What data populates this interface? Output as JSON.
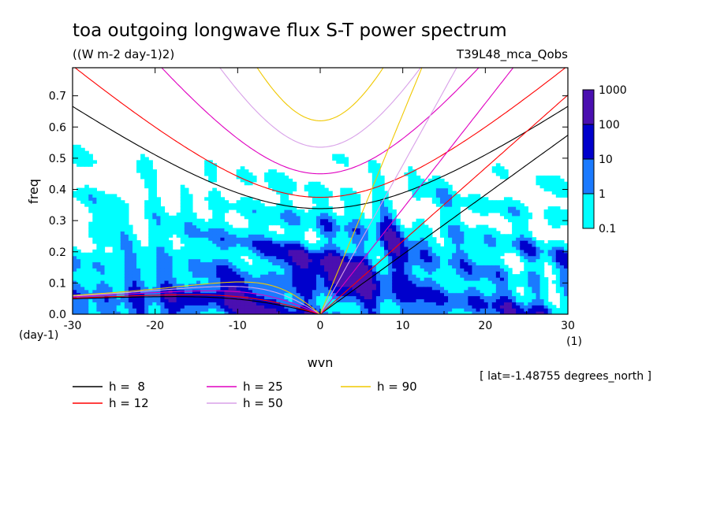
{
  "chart_data": {
    "type": "heatmap",
    "title": "toa outgoing longwave flux S-T power spectrum",
    "subtitle": "((W m-2 day-1)2)",
    "experiment": "T39L48_mca_Qobs",
    "xlabel": "wvn",
    "xunit": "(1)",
    "ylabel": "freq",
    "yunit": "(day-1)",
    "xlim": [
      -30,
      30
    ],
    "ylim": [
      0,
      0.79
    ],
    "x_ticks": [
      "-30",
      "-20",
      "-10",
      "0",
      "10",
      "20",
      "30"
    ],
    "x_tick_values": [
      -30,
      -20,
      -10,
      0,
      10,
      20,
      30
    ],
    "y_ticks": [
      "0.0",
      "0.1",
      "0.2",
      "0.3",
      "0.4",
      "0.5",
      "0.6",
      "0.7"
    ],
    "y_tick_values": [
      0,
      0.1,
      0.2,
      0.3,
      0.4,
      0.5,
      0.6,
      0.7
    ],
    "colorbar": {
      "labels": [
        "1000",
        "100",
        "10",
        "1",
        "0.1"
      ],
      "levels": [
        0.1,
        1,
        10,
        100,
        1000
      ],
      "colors": [
        "#00ffff",
        "#1a7aff",
        "#0000cc",
        "#4a0fb0"
      ]
    },
    "series": [
      {
        "name": "h =  8",
        "value": 8,
        "color": "#000000"
      },
      {
        "name": "h = 12",
        "value": 12,
        "color": "#ff0000"
      },
      {
        "name": "h = 25",
        "value": 25,
        "color": "#e000c0"
      },
      {
        "name": "h = 50",
        "value": 50,
        "color": "#d8a0e8"
      },
      {
        "name": "h = 90",
        "value": 90,
        "color": "#f0c800"
      }
    ],
    "annotation": "[ lat=-1.48755 degrees_north ]"
  }
}
